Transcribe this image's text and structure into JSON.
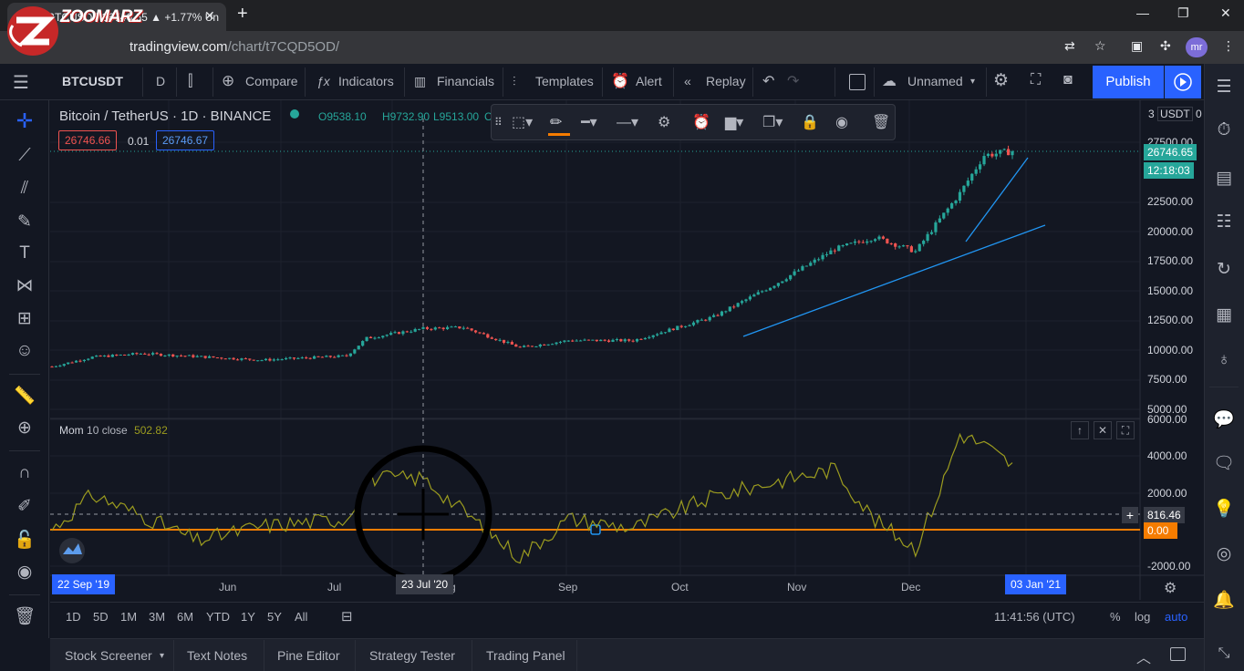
{
  "browser": {
    "tab_title": "BTCUSDT 26746.65 ▲ +1.77% Un",
    "url_host": "tradingview.com",
    "url_path": "/chart/t7CQD5OD/",
    "avatar_initials": "mr"
  },
  "logo": {
    "text": "ZOOMARZ"
  },
  "toolbar": {
    "symbol": "BTCUSDT",
    "interval": "D",
    "compare": "Compare",
    "indicators": "Indicators",
    "financials": "Financials",
    "templates": "Templates",
    "alert": "Alert",
    "replay": "Replay",
    "layout_name": "Unnamed",
    "publish": "Publish"
  },
  "legend": {
    "title": "Bitcoin / TetherUS · 1D · BINANCE",
    "o": "O9538.10",
    "h": "H9732.90",
    "l": "L9513.00",
    "c": "C",
    "bid": "26746.66",
    "spread": "0.01",
    "ask": "26746.67"
  },
  "price_axis": {
    "currency": "USDT",
    "currency_prefix": "3",
    "ticks": [
      "27500.00",
      "22500.00",
      "20000.00",
      "17500.00",
      "15000.00",
      "12500.00",
      "10000.00",
      "7500.00",
      "5000.00"
    ],
    "last_price": "26746.65",
    "countdown": "12:18:03"
  },
  "indicator": {
    "name": "Mom",
    "params": "10 close",
    "value": "502.82",
    "ticks": [
      "6000.00",
      "4000.00",
      "2000.00",
      "-2000.00"
    ],
    "crosshair_value": "816.46",
    "zero_value": "0.00"
  },
  "time_axis": {
    "months": [
      "Jun",
      "Jul",
      "g",
      "Sep",
      "Oct",
      "Nov",
      "Dec"
    ],
    "start_badge": "22 Sep '19",
    "cursor_badge": "23 Jul '20",
    "end_badge": "03 Jan '21"
  },
  "range_bar": {
    "ranges": [
      "1D",
      "5D",
      "1M",
      "3M",
      "6M",
      "YTD",
      "1Y",
      "5Y",
      "All"
    ],
    "clock": "11:41:56 (UTC)",
    "percent": "%",
    "log": "log",
    "auto": "auto"
  },
  "bottom_tabs": [
    "Stock Screener",
    "Text Notes",
    "Pine Editor",
    "Strategy Tester",
    "Trading Panel"
  ],
  "colors": {
    "background": "#131722",
    "up": "#26a69a",
    "down": "#ef5350",
    "accent": "#2962ff",
    "trend_line": "#2196f3",
    "momentum": "#9c9c1f",
    "zero_line": "#f57c00"
  },
  "chart_data": {
    "type": "candlestick",
    "x_range": [
      "2020-05-10",
      "2021-01-03"
    ],
    "y_range": [
      5000,
      29000
    ],
    "close_approx": [
      [
        "2020-05-10",
        8600
      ],
      [
        "2020-05-20",
        9400
      ],
      [
        "2020-06-01",
        9700
      ],
      [
        "2020-06-15",
        9450
      ],
      [
        "2020-07-01",
        9150
      ],
      [
        "2020-07-22",
        9500
      ],
      [
        "2020-07-27",
        11000
      ],
      [
        "2020-08-10",
        11800
      ],
      [
        "2020-08-20",
        11900
      ],
      [
        "2020-09-03",
        10200
      ],
      [
        "2020-09-15",
        10800
      ],
      [
        "2020-10-01",
        10800
      ],
      [
        "2020-10-21",
        12800
      ],
      [
        "2020-11-05",
        15500
      ],
      [
        "2020-11-20",
        18500
      ],
      [
        "2020-11-30",
        19500
      ],
      [
        "2020-12-10",
        18300
      ],
      [
        "2020-12-16",
        21000
      ],
      [
        "2020-12-21",
        23200
      ],
      [
        "2020-12-27",
        26400
      ],
      [
        "2021-01-03",
        26746.65
      ]
    ],
    "momentum_approx": [
      [
        "2020-05-10",
        0
      ],
      [
        "2020-05-20",
        1900
      ],
      [
        "2020-06-01",
        800
      ],
      [
        "2020-06-15",
        -600
      ],
      [
        "2020-07-01",
        200
      ],
      [
        "2020-07-22",
        600
      ],
      [
        "2020-07-27",
        2800
      ],
      [
        "2020-08-10",
        2800
      ],
      [
        "2020-08-20",
        1000
      ],
      [
        "2020-09-03",
        -1500
      ],
      [
        "2020-09-15",
        600
      ],
      [
        "2020-10-01",
        100
      ],
      [
        "2020-10-21",
        1800
      ],
      [
        "2020-11-05",
        2600
      ],
      [
        "2020-11-20",
        3300
      ],
      [
        "2020-11-30",
        500
      ],
      [
        "2020-12-10",
        -1000
      ],
      [
        "2020-12-16",
        2100
      ],
      [
        "2020-12-21",
        5200
      ],
      [
        "2020-12-27",
        4600
      ],
      [
        "2021-01-03",
        3500
      ]
    ]
  }
}
